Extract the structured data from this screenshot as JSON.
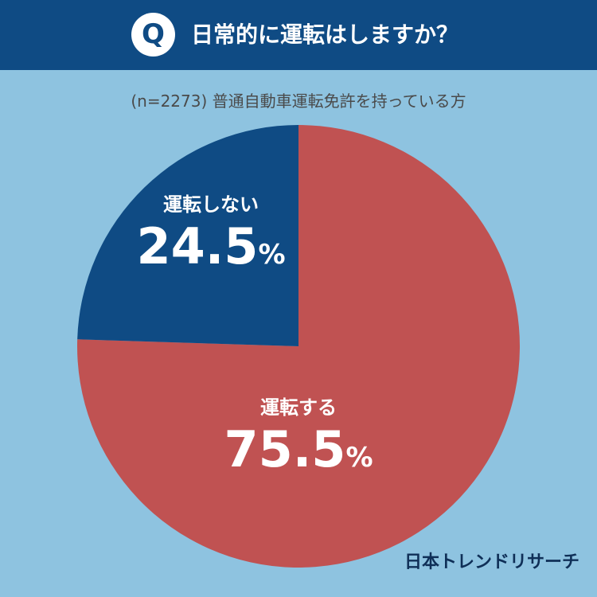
{
  "header": {
    "badge": "Q",
    "question": "日常的に運転はしますか？"
  },
  "subtitle": "(n=2273) 普通自動車運転免許を持っている方",
  "brand": "日本トレンドリサーチ",
  "colors": {
    "header_bg": "#0f4b84",
    "page_bg": "#8ec3e0",
    "drive": "#c05252",
    "no_drive": "#0f4b84"
  },
  "chart_data": {
    "type": "pie",
    "slices": [
      {
        "label": "運転する",
        "value": 75.5,
        "value_text": "75.5",
        "unit": "%",
        "color": "#c05252"
      },
      {
        "label": "運転しない",
        "value": 24.5,
        "value_text": "24.5",
        "unit": "%",
        "color": "#0f4b84"
      }
    ]
  }
}
